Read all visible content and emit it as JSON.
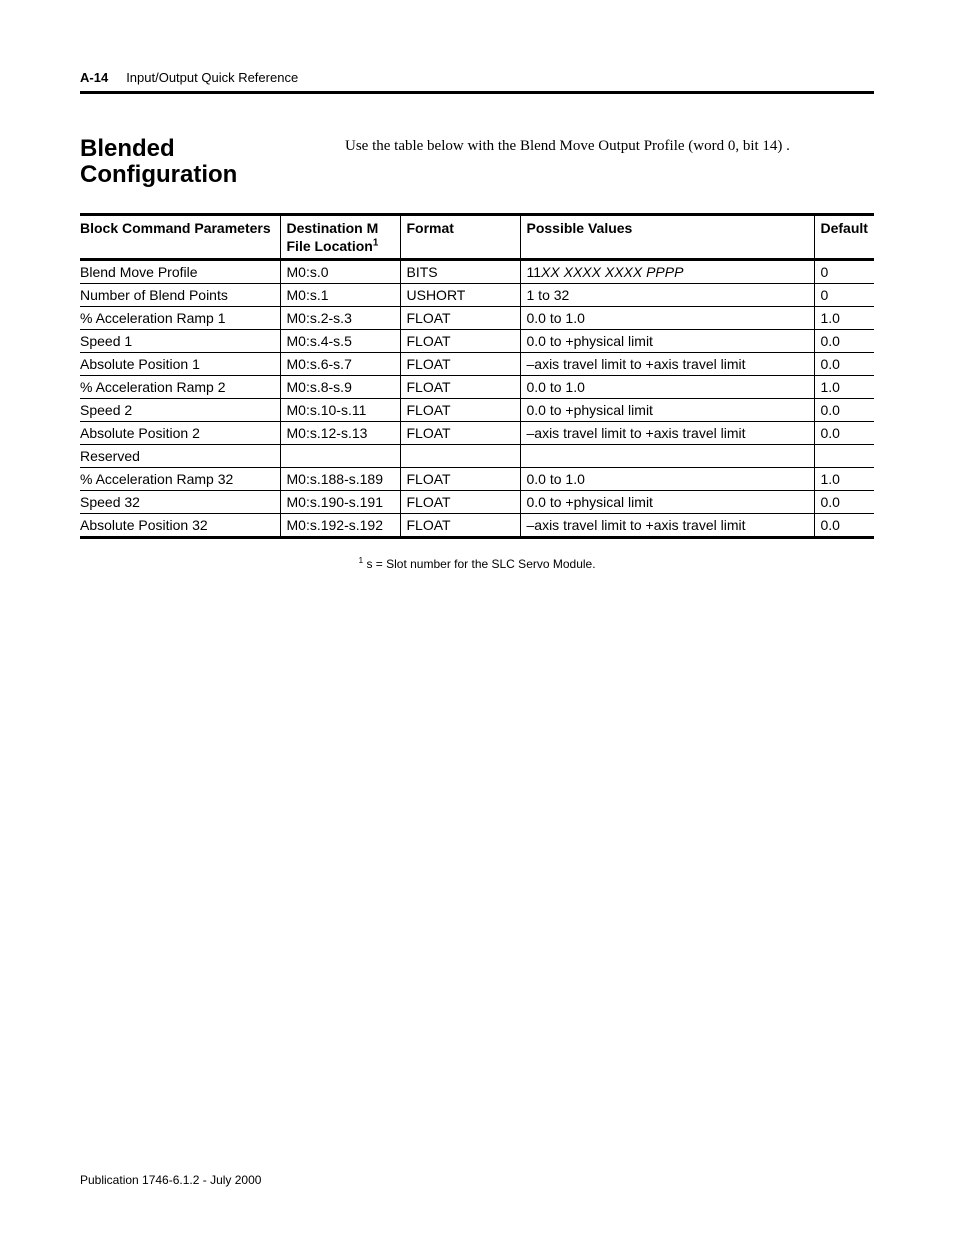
{
  "header": {
    "page_num": "A-14",
    "title": "Input/Output Quick Reference"
  },
  "section": {
    "title": "Blended Configuration",
    "body_text": "Use the table below with the Blend Move Output Profile (word 0, bit 14)   ."
  },
  "table": {
    "columns": [
      "Block Command Parameters",
      "Destination M File Location",
      "Format",
      "Possible Values",
      "Default"
    ],
    "header_sup_col_index": 1,
    "header_sup": "1",
    "rows": [
      {
        "param": "Blend Move Profile",
        "dest": "M0:s.0",
        "fmt": "BITS",
        "poss_pre": "11",
        "poss_italic": "XX XXXX XXXX PPPP",
        "poss_post": "",
        "def": "0"
      },
      {
        "param": "Number of Blend Points",
        "dest": "M0:s.1",
        "fmt": "USHORT",
        "poss_pre": "1 to 32",
        "poss_italic": "",
        "poss_post": "",
        "def": "0"
      },
      {
        "param": "% Acceleration Ramp 1",
        "dest": "M0:s.2-s.3",
        "fmt": "FLOAT",
        "poss_pre": "0.0 to 1.0",
        "poss_italic": "",
        "poss_post": "",
        "def": "1.0"
      },
      {
        "param": "Speed 1",
        "dest": "M0:s.4-s.5",
        "fmt": "FLOAT",
        "poss_pre": "0.0 to +physical limit",
        "poss_italic": "",
        "poss_post": "",
        "def": "0.0"
      },
      {
        "param": "Absolute Position 1",
        "dest": "M0:s.6-s.7",
        "fmt": "FLOAT",
        "poss_pre": "–axis travel limit to +axis travel limit",
        "poss_italic": "",
        "poss_post": "",
        "def": "0.0"
      },
      {
        "param": "% Acceleration Ramp 2",
        "dest": "M0:s.8-s.9",
        "fmt": "FLOAT",
        "poss_pre": "0.0 to 1.0",
        "poss_italic": "",
        "poss_post": "",
        "def": "1.0"
      },
      {
        "param": "Speed 2",
        "dest": "M0:s.10-s.11",
        "fmt": "FLOAT",
        "poss_pre": "0.0 to +physical limit",
        "poss_italic": "",
        "poss_post": "",
        "def": "0.0"
      },
      {
        "param": "Absolute Position 2",
        "dest": "M0:s.12-s.13",
        "fmt": "FLOAT",
        "poss_pre": "–axis travel limit to +axis travel limit",
        "poss_italic": "",
        "poss_post": "",
        "def": "0.0"
      },
      {
        "param": "Reserved",
        "dest": "",
        "fmt": "",
        "poss_pre": "",
        "poss_italic": "",
        "poss_post": "",
        "def": ""
      },
      {
        "param": "% Acceleration Ramp 32",
        "dest": "M0:s.188-s.189",
        "fmt": "FLOAT",
        "poss_pre": "0.0 to 1.0",
        "poss_italic": "",
        "poss_post": "",
        "def": "1.0"
      },
      {
        "param": "Speed 32",
        "dest": "M0:s.190-s.191",
        "fmt": "FLOAT",
        "poss_pre": "0.0 to +physical limit",
        "poss_italic": "",
        "poss_post": "",
        "def": "0.0"
      },
      {
        "param": "Absolute Position 32",
        "dest": "M0:s.192-s.192",
        "fmt": "FLOAT",
        "poss_pre": "–axis travel limit to +axis travel limit",
        "poss_italic": "",
        "poss_post": "",
        "def": "0.0"
      }
    ]
  },
  "footnote": {
    "sup": "1",
    "text": " s = Slot number for the SLC Servo Module."
  },
  "pub_line": "Publication 1746-6.1.2 - July 2000"
}
